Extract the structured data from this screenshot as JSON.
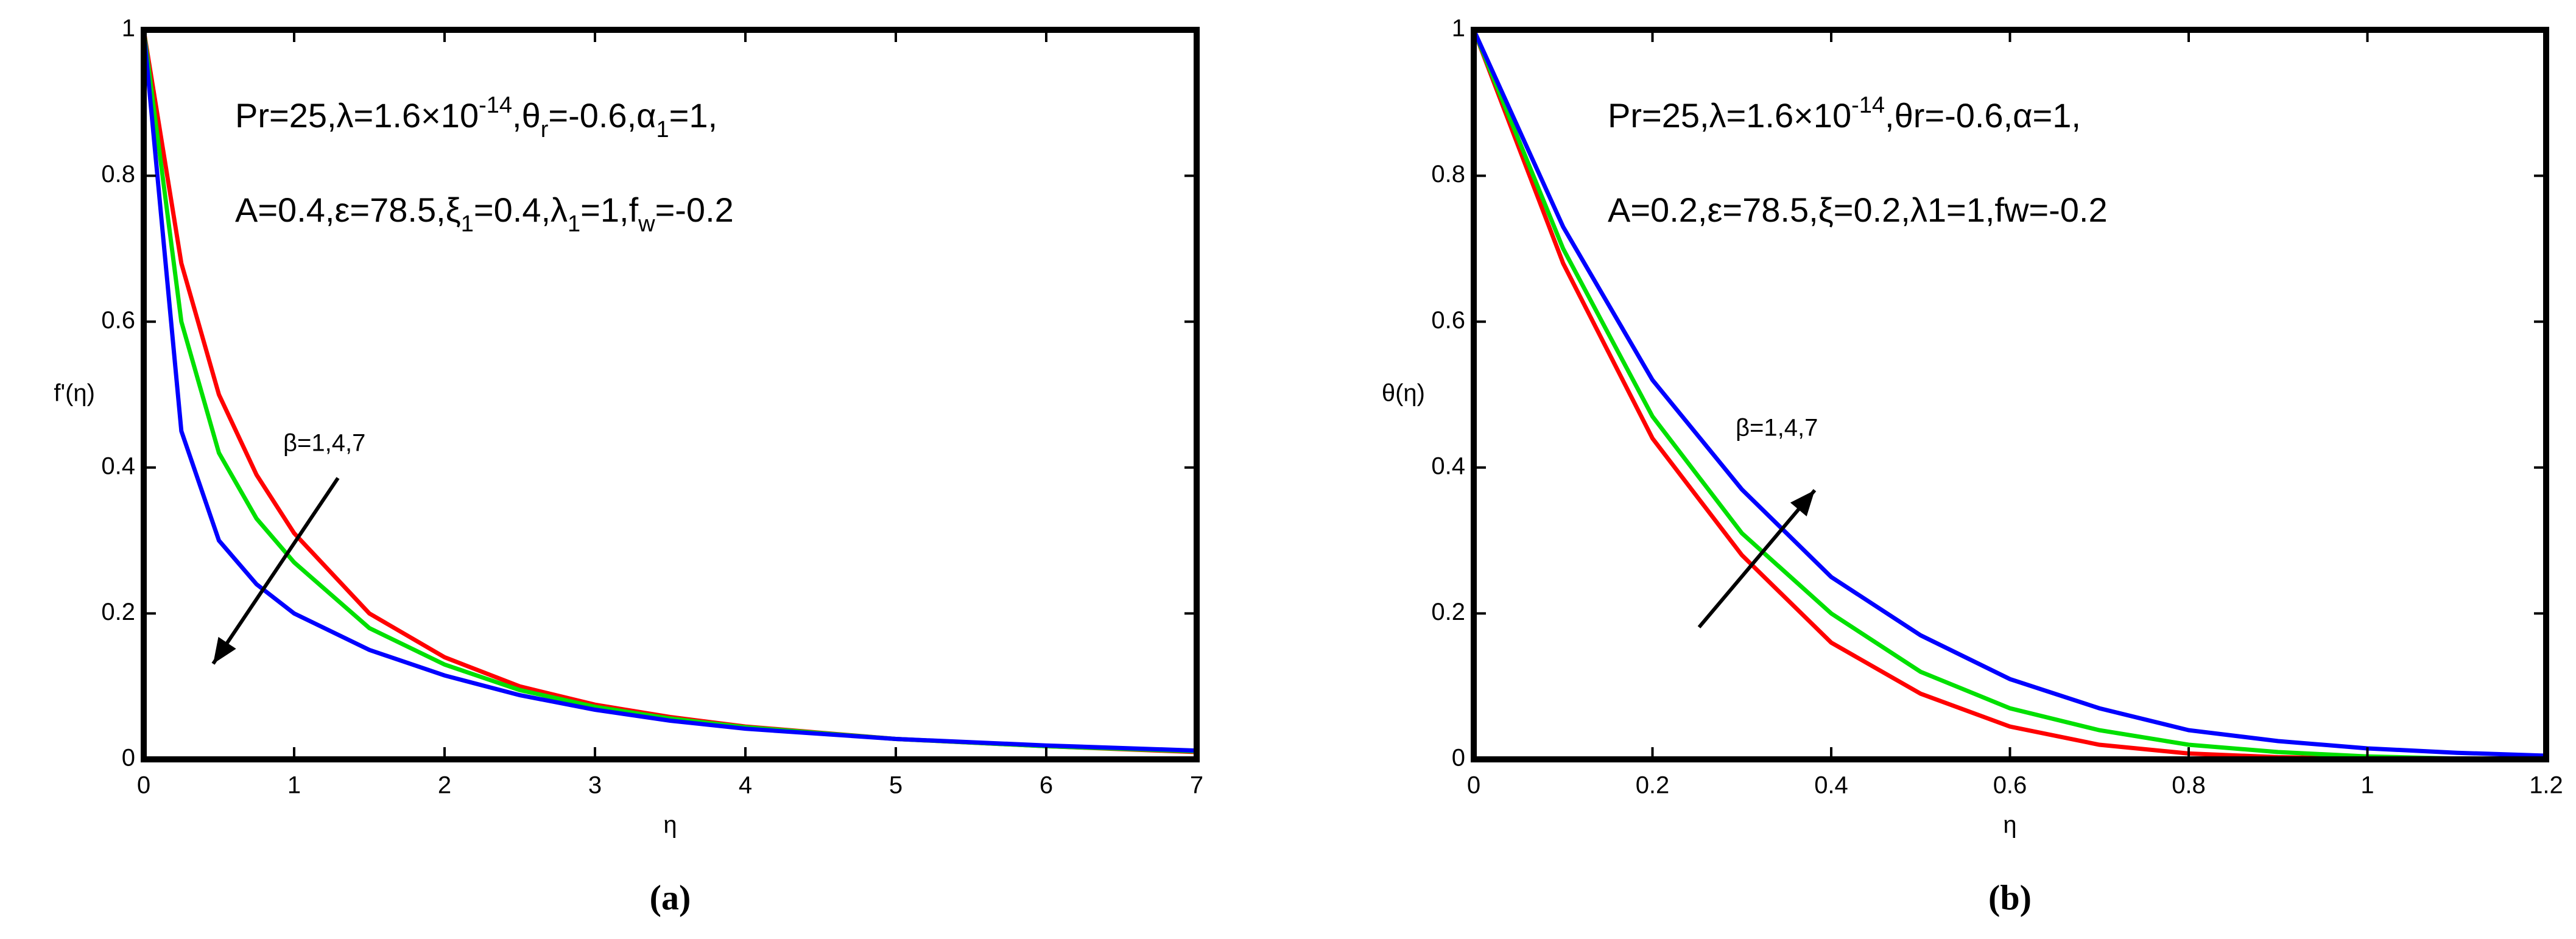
{
  "chart_data": [
    {
      "type": "line",
      "caption": "(a)",
      "xlabel": "η",
      "ylabel": "f'(η)",
      "annotation_lines": [
        [
          {
            "text": "Pr=25,λ=1.6×10"
          },
          {
            "text": "-14",
            "script": "super"
          },
          {
            "text": ",θ"
          },
          {
            "text": "r",
            "script": "sub"
          },
          {
            "text": "=-0.6,α"
          },
          {
            "text": "1",
            "script": "sub"
          },
          {
            "text": "=1,"
          }
        ],
        [
          {
            "text": "A=0.4,ε=78.5,ξ"
          },
          {
            "text": "1",
            "script": "sub"
          },
          {
            "text": "=0.4,λ"
          },
          {
            "text": "1",
            "script": "sub"
          },
          {
            "text": "=1,f"
          },
          {
            "text": "w",
            "script": "sub"
          },
          {
            "text": "=-0.2"
          }
        ]
      ],
      "arrow_label": "β=1,4,7",
      "x": [
        0,
        0.25,
        0.5,
        0.75,
        1,
        1.5,
        2,
        2.5,
        3,
        3.5,
        4,
        5,
        6,
        7
      ],
      "series": [
        {
          "color": "#ff0000",
          "values": [
            1,
            0.68,
            0.5,
            0.39,
            0.31,
            0.2,
            0.14,
            0.1,
            0.075,
            0.058,
            0.045,
            0.028,
            0.018,
            0.01
          ]
        },
        {
          "color": "#00e000",
          "values": [
            1,
            0.6,
            0.42,
            0.33,
            0.27,
            0.18,
            0.13,
            0.095,
            0.072,
            0.056,
            0.044,
            0.028,
            0.018,
            0.011
          ]
        },
        {
          "color": "#0000ff",
          "values": [
            1,
            0.45,
            0.3,
            0.24,
            0.2,
            0.15,
            0.115,
            0.088,
            0.068,
            0.053,
            0.042,
            0.028,
            0.019,
            0.012
          ]
        }
      ],
      "xlim": [
        0,
        7
      ],
      "xticks": [
        0,
        1,
        2,
        3,
        4,
        5,
        6,
        7
      ],
      "ylim": [
        0,
        1
      ],
      "yticks": [
        0,
        0.2,
        0.4,
        0.6,
        0.8,
        1
      ]
    },
    {
      "type": "line",
      "caption": "(b)",
      "xlabel": "η",
      "ylabel": "θ(η)",
      "annotation_lines": [
        [
          {
            "text": "Pr=25,λ=1.6×10"
          },
          {
            "text": "-14",
            "script": "super"
          },
          {
            "text": ",θr=-0.6,α=1,"
          }
        ],
        [
          {
            "text": "A=0.2,ε=78.5,ξ=0.2,λ1=1,fw=-0.2"
          }
        ]
      ],
      "arrow_label": "β=1,4,7",
      "x": [
        0,
        0.1,
        0.2,
        0.3,
        0.4,
        0.5,
        0.6,
        0.7,
        0.8,
        0.9,
        1,
        1.1,
        1.2
      ],
      "series": [
        {
          "color": "#ff0000",
          "values": [
            1,
            0.68,
            0.44,
            0.28,
            0.16,
            0.09,
            0.045,
            0.02,
            0.008,
            0.003,
            0.001,
            0,
            0
          ]
        },
        {
          "color": "#00e000",
          "values": [
            1,
            0.7,
            0.47,
            0.31,
            0.2,
            0.12,
            0.07,
            0.04,
            0.02,
            0.01,
            0.004,
            0.001,
            0
          ]
        },
        {
          "color": "#0000ff",
          "values": [
            1,
            0.73,
            0.52,
            0.37,
            0.25,
            0.17,
            0.11,
            0.07,
            0.04,
            0.025,
            0.015,
            0.009,
            0.005
          ]
        }
      ],
      "xlim": [
        0,
        1.2
      ],
      "xticks": [
        0,
        0.2,
        0.4,
        0.6,
        0.8,
        1,
        1.2
      ],
      "ylim": [
        0,
        1
      ],
      "yticks": [
        0,
        0.2,
        0.4,
        0.6,
        0.8,
        1
      ]
    }
  ]
}
